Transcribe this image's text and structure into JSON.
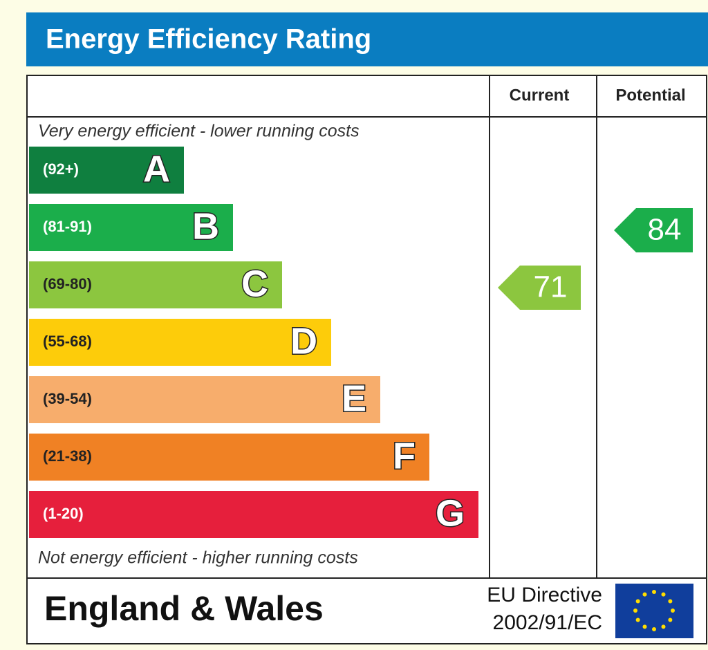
{
  "header": {
    "title": "Energy Efficiency Rating"
  },
  "columns": {
    "current": "Current",
    "potential": "Potential"
  },
  "top_note": "Very energy efficient - lower running costs",
  "bottom_note": "Not energy efficient - higher running costs",
  "bands": [
    {
      "range": "(92+)",
      "letter": "A",
      "color": "#0f7f3f"
    },
    {
      "range": "(81-91)",
      "letter": "B",
      "color": "#1bae4b"
    },
    {
      "range": "(69-80)",
      "letter": "C",
      "color": "#8cc63f"
    },
    {
      "range": "(55-68)",
      "letter": "D",
      "color": "#fdcc0a"
    },
    {
      "range": "(39-54)",
      "letter": "E",
      "color": "#f7ad6c"
    },
    {
      "range": "(21-38)",
      "letter": "F",
      "color": "#f08124"
    },
    {
      "range": "(1-20)",
      "letter": "G",
      "color": "#e61f3c"
    }
  ],
  "ratings": {
    "current": 71,
    "potential": 84
  },
  "footer": {
    "region": "England & Wales",
    "directive_line1": "EU Directive",
    "directive_line2": "2002/91/EC"
  }
}
